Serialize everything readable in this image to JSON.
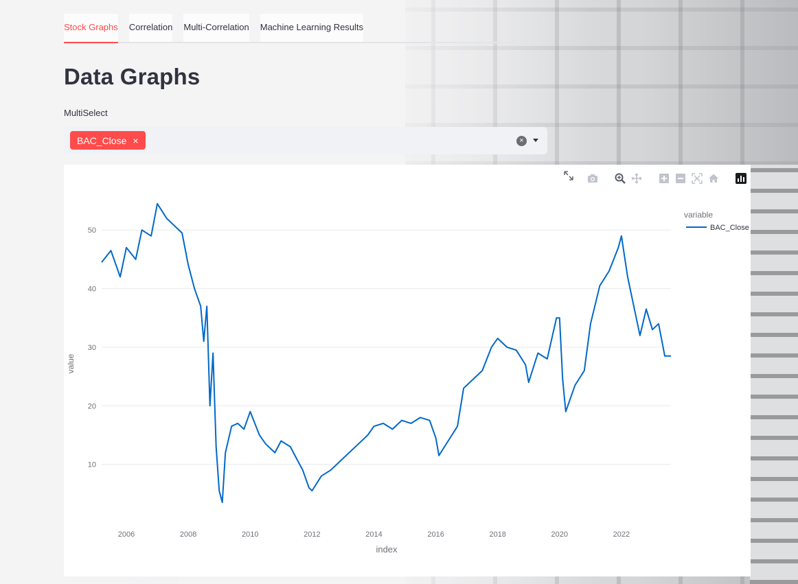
{
  "tabs": [
    {
      "label": "Stock Graphs",
      "active": true
    },
    {
      "label": "Correlation",
      "active": false
    },
    {
      "label": "Multi-Correlation",
      "active": false
    },
    {
      "label": "Machine Learning Results",
      "active": false
    }
  ],
  "page_title": "Data Graphs",
  "multiselect": {
    "label": "MultiSelect",
    "selected": [
      "BAC_Close"
    ],
    "chip_remove": "×",
    "clear": "×"
  },
  "colors": {
    "accent": "#ff4b4b",
    "series": "#0068c9"
  },
  "chart_data": {
    "type": "line",
    "xlabel": "index",
    "ylabel": "value",
    "legend_title": "variable",
    "legend_position": "top-right",
    "grid": true,
    "x_ticks": [
      "2006",
      "2008",
      "2010",
      "2012",
      "2014",
      "2016",
      "2018",
      "2020",
      "2022"
    ],
    "y_ticks": [
      "10",
      "20",
      "30",
      "40",
      "50"
    ],
    "xlim": [
      2005.2,
      2023.6
    ],
    "ylim": [
      0,
      56
    ],
    "series": [
      {
        "name": "BAC_Close",
        "x": [
          2005.2,
          2005.5,
          2005.8,
          2006.0,
          2006.3,
          2006.5,
          2006.8,
          2007.0,
          2007.3,
          2007.5,
          2007.8,
          2008.0,
          2008.2,
          2008.4,
          2008.5,
          2008.6,
          2008.7,
          2008.8,
          2008.9,
          2009.0,
          2009.1,
          2009.2,
          2009.4,
          2009.6,
          2009.8,
          2010.0,
          2010.3,
          2010.5,
          2010.8,
          2011.0,
          2011.3,
          2011.5,
          2011.7,
          2011.9,
          2012.0,
          2012.3,
          2012.6,
          2012.9,
          2013.2,
          2013.5,
          2013.8,
          2014.0,
          2014.3,
          2014.6,
          2014.9,
          2015.2,
          2015.5,
          2015.8,
          2016.0,
          2016.1,
          2016.4,
          2016.7,
          2016.9,
          2017.2,
          2017.5,
          2017.8,
          2018.0,
          2018.3,
          2018.6,
          2018.9,
          2019.0,
          2019.3,
          2019.6,
          2019.9,
          2020.0,
          2020.1,
          2020.2,
          2020.5,
          2020.8,
          2021.0,
          2021.3,
          2021.6,
          2021.9,
          2022.0,
          2022.2,
          2022.4,
          2022.6,
          2022.8,
          2023.0,
          2023.2,
          2023.4,
          2023.6
        ],
        "values": [
          44.5,
          46.5,
          42,
          47,
          45,
          50,
          49,
          54.5,
          52,
          51,
          49.5,
          44,
          40,
          37,
          31,
          37,
          20,
          29,
          13,
          5.5,
          3.5,
          12,
          16.5,
          17,
          16,
          19,
          15,
          13.5,
          12,
          14,
          13,
          11,
          9,
          6,
          5.5,
          8,
          9,
          10.5,
          12,
          13.5,
          15,
          16.5,
          17,
          16,
          17.5,
          17,
          18,
          17.5,
          14.5,
          11.5,
          14,
          16.5,
          23,
          24.5,
          26,
          30,
          31.5,
          30,
          29.5,
          27,
          24,
          29,
          28,
          35,
          35,
          24.5,
          19,
          23.5,
          26,
          34,
          40.5,
          43,
          47,
          49,
          42,
          37,
          32,
          36.5,
          33,
          34,
          28.5,
          28.5
        ]
      }
    ]
  }
}
